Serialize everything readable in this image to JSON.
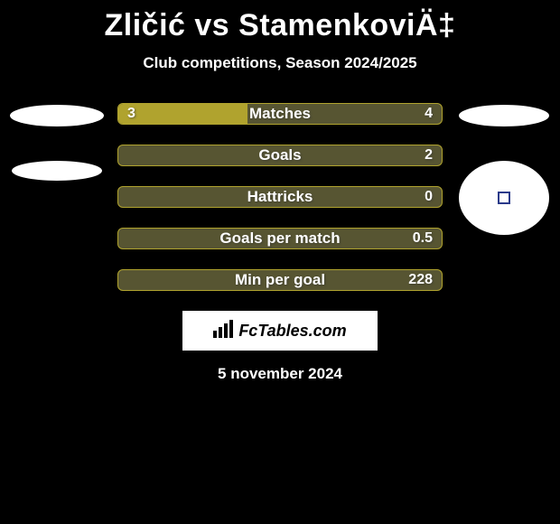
{
  "header": {
    "title": "Zličić vs StamenkoviÄ‡",
    "subtitle": "Club competitions, Season 2024/2025"
  },
  "colors": {
    "page_bg": "#000000",
    "bar_bg": "#575532",
    "bar_fill": "#b0a32e",
    "bar_border": "#b0a32e",
    "text": "#ffffff"
  },
  "bars": [
    {
      "label": "Matches",
      "left": "3",
      "right": "4",
      "fill_pct": 40
    },
    {
      "label": "Goals",
      "left": "",
      "right": "2",
      "fill_pct": 0
    },
    {
      "label": "Hattricks",
      "left": "",
      "right": "0",
      "fill_pct": 0
    },
    {
      "label": "Goals per match",
      "left": "",
      "right": "0.5",
      "fill_pct": 0
    },
    {
      "label": "Min per goal",
      "left": "",
      "right": "228",
      "fill_pct": 0
    }
  ],
  "footer": {
    "logo_text": "FcTables.com",
    "date": "5 november 2024"
  }
}
